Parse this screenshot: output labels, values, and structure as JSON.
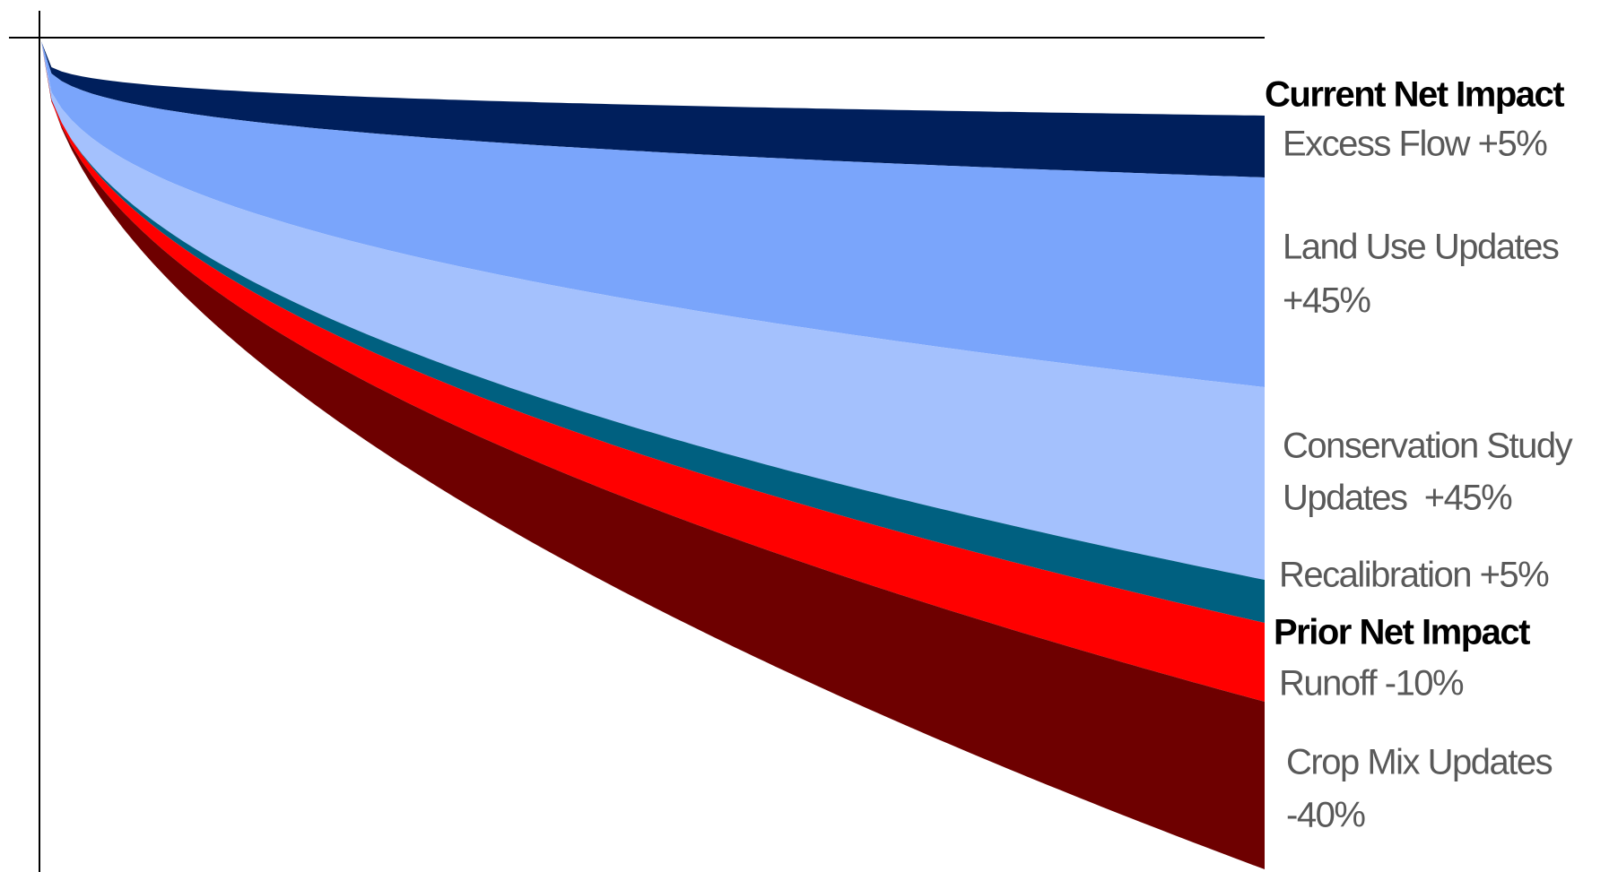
{
  "current_net_impact": "Current Net Impact",
  "prior_net_impact": "Prior Net Impact",
  "bands": [
    {
      "label": [
        "Excess Flow +5%"
      ],
      "color": "#001f5c"
    },
    {
      "label": [
        "Land Use Updates",
        "+45%"
      ],
      "color": "#7aa5fb"
    },
    {
      "label": [
        "Conservation Study",
        "Updates  +45%"
      ],
      "color": "#a4c1fd"
    },
    {
      "label": [
        "Recalibration +5%"
      ],
      "color": "#006080"
    },
    {
      "label": [
        "Runoff -10%"
      ],
      "color": "#ff0000"
    },
    {
      "label": [
        "Crop Mix Updates",
        "-40%"
      ],
      "color": "#6e0000"
    }
  ]
}
